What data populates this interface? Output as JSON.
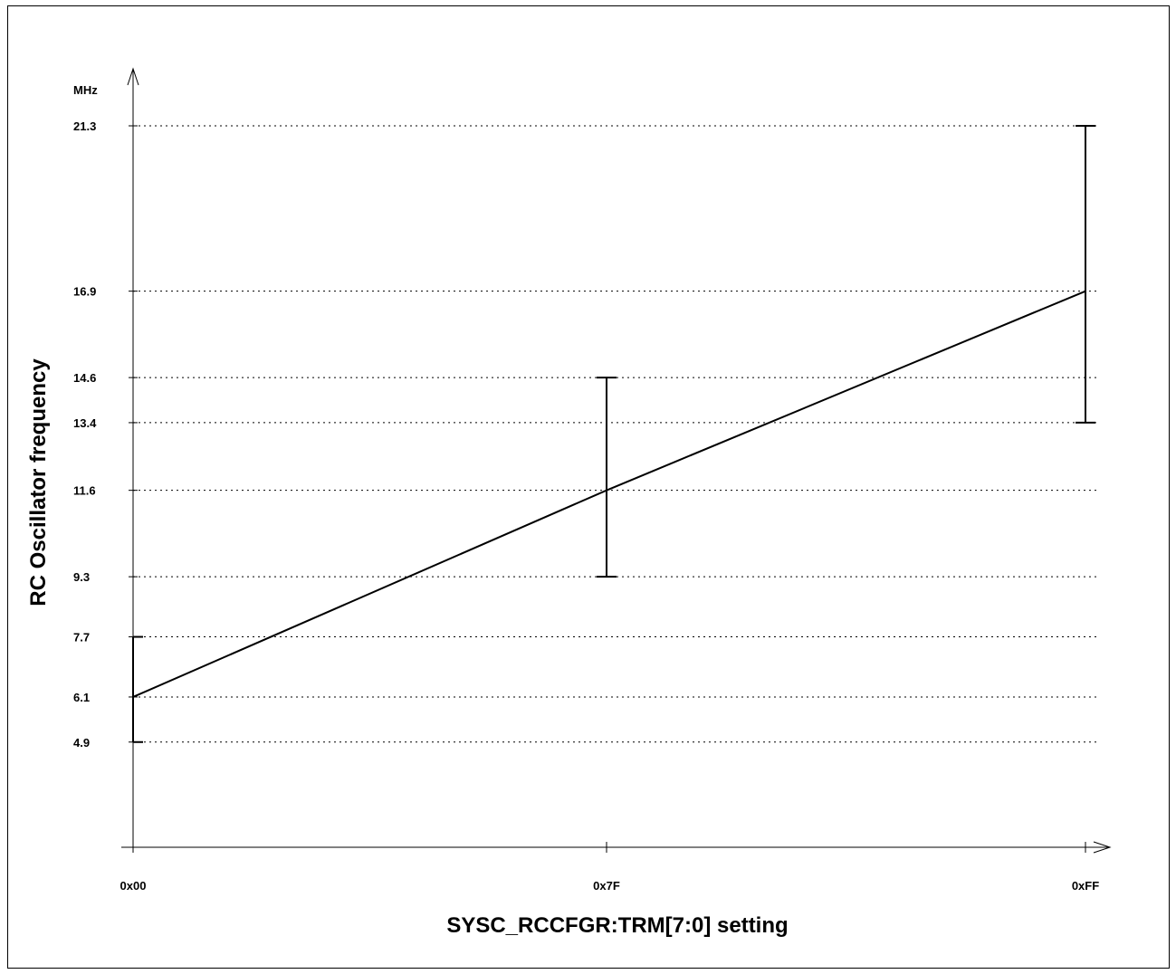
{
  "chart_data": {
    "type": "line",
    "xlabel": "SYSC_RCCFGR:TRM[7:0] setting",
    "ylabel": "RC Oscillator frequency",
    "y_unit": "MHz",
    "x_categories": [
      "0x00",
      "0x7F",
      "0xFF"
    ],
    "y_ticks": [
      4.9,
      6.1,
      7.7,
      9.3,
      11.6,
      13.4,
      14.6,
      16.9,
      21.3
    ],
    "ylim": [
      2.1,
      21.3
    ],
    "grid": "horizontal-dotted",
    "series": [
      {
        "typical": [
          6.1,
          11.6,
          16.9
        ],
        "min": [
          4.9,
          9.3,
          13.4
        ],
        "max": [
          7.7,
          14.6,
          21.3
        ]
      }
    ]
  }
}
